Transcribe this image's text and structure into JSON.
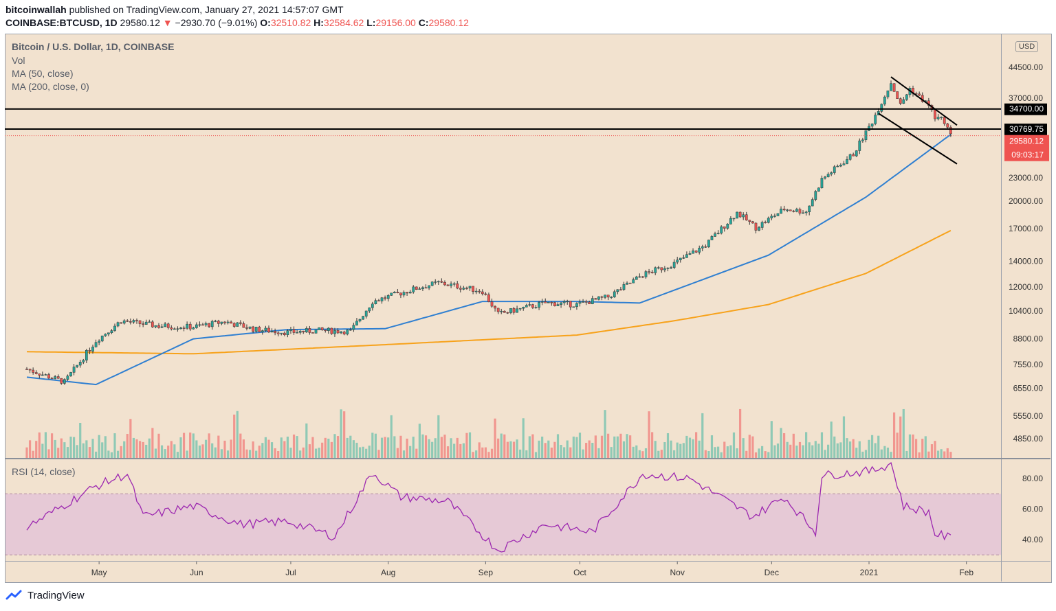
{
  "header": {
    "publisher": "bitcoinwallah",
    "published_text": "published on TradingView.com, January 27, 2021 14:57:07 GMT",
    "symbol": "COINBASE:BTCUSD, 1D",
    "last": "29580.12",
    "change_arrow": "▼",
    "change": "−2930.70 (−9.01%)",
    "o_label": "O:",
    "o": "32510.82",
    "h_label": "H:",
    "h": "32584.62",
    "l_label": "L:",
    "l": "29156.00",
    "c_label": "C:",
    "c": "29580.12"
  },
  "legend": {
    "title": "Bitcoin / U.S. Dollar, 1D, COINBASE",
    "vol": "Vol",
    "ma50": "MA (50, close)",
    "ma200": "MA (200, close, 0)",
    "rsi": "RSI (14, close)"
  },
  "currency_button": "USD",
  "footer": {
    "brand": "TradingView"
  },
  "colors": {
    "background": "#f2e2cf",
    "up": "#26a69a",
    "down": "#ef5350",
    "candle_up_body": "#26a69a",
    "candle_down_body": "#ef5350",
    "ma50": "#2f7fd1",
    "ma200": "#f7a21b",
    "rsi_line": "#9c27b0",
    "rsi_band": "#e6c9d6",
    "level_line": "#000000"
  },
  "chart_data": {
    "type": "candlestick",
    "interval": "1D",
    "price_scale": "log",
    "price_ticks": [
      "44500.00",
      "37000.00",
      "23000.00",
      "20000.00",
      "17000.00",
      "14000.00",
      "12000.00",
      "10400.00",
      "8800.00",
      "7550.00",
      "6550.00",
      "5550.00",
      "4850.00"
    ],
    "time_labels": [
      "May",
      "Jun",
      "Jul",
      "Aug",
      "Sep",
      "Oct",
      "Nov",
      "Dec",
      "2021",
      "Feb"
    ],
    "horizontal_levels": [
      {
        "value": 34700.0,
        "label": "34700.00"
      },
      {
        "value": 30769.75,
        "label": "30769.75"
      }
    ],
    "last_price": {
      "value": 29580.12,
      "label": "29580.12",
      "countdown": "09:03:17"
    },
    "channel": {
      "upper": {
        "from": {
          "date": "2021-01-08",
          "price": 42000
        },
        "to": {
          "date": "2021-01-29",
          "price": 31500
        }
      },
      "lower": {
        "from": {
          "date": "2021-01-04",
          "price": 33800
        },
        "to": {
          "date": "2021-01-29",
          "price": 25000
        }
      }
    },
    "closes_approx": [
      {
        "date": "2020-04-08",
        "close": 7350
      },
      {
        "date": "2020-04-20",
        "close": 6800
      },
      {
        "date": "2020-04-30",
        "close": 8700
      },
      {
        "date": "2020-05-08",
        "close": 9800
      },
      {
        "date": "2020-05-20",
        "close": 9500
      },
      {
        "date": "2020-05-31",
        "close": 9450
      },
      {
        "date": "2020-06-10",
        "close": 9750
      },
      {
        "date": "2020-06-20",
        "close": 9300
      },
      {
        "date": "2020-06-30",
        "close": 9150
      },
      {
        "date": "2020-07-10",
        "close": 9250
      },
      {
        "date": "2020-07-20",
        "close": 9200
      },
      {
        "date": "2020-07-27",
        "close": 11000
      },
      {
        "date": "2020-08-10",
        "close": 11900
      },
      {
        "date": "2020-08-17",
        "close": 12300
      },
      {
        "date": "2020-08-31",
        "close": 11700
      },
      {
        "date": "2020-09-05",
        "close": 10200
      },
      {
        "date": "2020-09-20",
        "close": 10900
      },
      {
        "date": "2020-09-30",
        "close": 10800
      },
      {
        "date": "2020-10-10",
        "close": 11300
      },
      {
        "date": "2020-10-21",
        "close": 12900
      },
      {
        "date": "2020-10-31",
        "close": 13800
      },
      {
        "date": "2020-11-10",
        "close": 15400
      },
      {
        "date": "2020-11-20",
        "close": 18700
      },
      {
        "date": "2020-11-26",
        "close": 17100
      },
      {
        "date": "2020-12-05",
        "close": 19100
      },
      {
        "date": "2020-12-12",
        "close": 18800
      },
      {
        "date": "2020-12-17",
        "close": 22800
      },
      {
        "date": "2020-12-27",
        "close": 26500
      },
      {
        "date": "2021-01-02",
        "close": 32200
      },
      {
        "date": "2021-01-08",
        "close": 40600
      },
      {
        "date": "2021-01-11",
        "close": 35500
      },
      {
        "date": "2021-01-14",
        "close": 39200
      },
      {
        "date": "2021-01-20",
        "close": 35500
      },
      {
        "date": "2021-01-22",
        "close": 33000
      },
      {
        "date": "2021-01-25",
        "close": 32300
      },
      {
        "date": "2021-01-27",
        "close": 29580
      }
    ],
    "ma50_approx": [
      {
        "date": "2020-04-08",
        "value": 7000
      },
      {
        "date": "2020-04-30",
        "value": 6700
      },
      {
        "date": "2020-05-31",
        "value": 8800
      },
      {
        "date": "2020-06-30",
        "value": 9300
      },
      {
        "date": "2020-07-31",
        "value": 9350
      },
      {
        "date": "2020-08-31",
        "value": 11000
      },
      {
        "date": "2020-09-30",
        "value": 11000
      },
      {
        "date": "2020-10-20",
        "value": 10900
      },
      {
        "date": "2020-11-30",
        "value": 14500
      },
      {
        "date": "2020-12-31",
        "value": 20500
      },
      {
        "date": "2021-01-27",
        "value": 29800
      }
    ],
    "ma200_approx": [
      {
        "date": "2020-04-08",
        "value": 8150
      },
      {
        "date": "2020-05-31",
        "value": 8050
      },
      {
        "date": "2020-07-31",
        "value": 8500
      },
      {
        "date": "2020-09-30",
        "value": 9000
      },
      {
        "date": "2020-10-31",
        "value": 9800
      },
      {
        "date": "2020-11-30",
        "value": 10800
      },
      {
        "date": "2020-12-31",
        "value": 13000
      },
      {
        "date": "2021-01-27",
        "value": 16800
      }
    ],
    "volume_scale": "relative",
    "rsi": {
      "period": 14,
      "ticks": [
        "80.00",
        "60.00",
        "40.00"
      ],
      "band": [
        30,
        70
      ],
      "values_approx": [
        {
          "date": "2020-04-08",
          "v": 48
        },
        {
          "date": "2020-04-30",
          "v": 75
        },
        {
          "date": "2020-05-10",
          "v": 83
        },
        {
          "date": "2020-05-15",
          "v": 55
        },
        {
          "date": "2020-05-31",
          "v": 62
        },
        {
          "date": "2020-06-15",
          "v": 50
        },
        {
          "date": "2020-06-30",
          "v": 52
        },
        {
          "date": "2020-07-15",
          "v": 42
        },
        {
          "date": "2020-07-27",
          "v": 84
        },
        {
          "date": "2020-08-05",
          "v": 68
        },
        {
          "date": "2020-08-20",
          "v": 65
        },
        {
          "date": "2020-09-05",
          "v": 33
        },
        {
          "date": "2020-09-20",
          "v": 50
        },
        {
          "date": "2020-10-05",
          "v": 45
        },
        {
          "date": "2020-10-21",
          "v": 83
        },
        {
          "date": "2020-11-05",
          "v": 80
        },
        {
          "date": "2020-11-25",
          "v": 55
        },
        {
          "date": "2020-12-05",
          "v": 68
        },
        {
          "date": "2020-12-15",
          "v": 45
        },
        {
          "date": "2020-12-17",
          "v": 82
        },
        {
          "date": "2021-01-02",
          "v": 85
        },
        {
          "date": "2021-01-08",
          "v": 90
        },
        {
          "date": "2021-01-12",
          "v": 62
        },
        {
          "date": "2021-01-20",
          "v": 58
        },
        {
          "date": "2021-01-22",
          "v": 44
        },
        {
          "date": "2021-01-27",
          "v": 41
        }
      ]
    }
  }
}
